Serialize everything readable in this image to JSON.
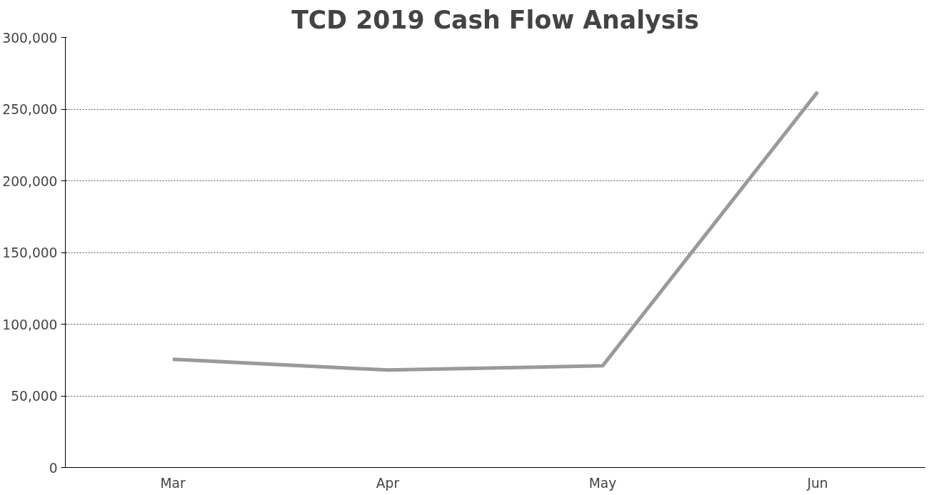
{
  "chart_data": {
    "type": "line",
    "title": "TCD 2019 Cash Flow Analysis",
    "categories": [
      "Mar",
      "Apr",
      "May",
      "Jun"
    ],
    "series": [
      {
        "color": "#9a9a9a",
        "values": [
          75500,
          68000,
          71000,
          262000
        ]
      }
    ],
    "ylim": [
      0,
      300000
    ],
    "yticks": [
      {
        "value": 0,
        "label": "0"
      },
      {
        "value": 50000,
        "label": "50,000"
      },
      {
        "value": 100000,
        "label": "100,000"
      },
      {
        "value": 150000,
        "label": "150,000"
      },
      {
        "value": 200000,
        "label": "200,000"
      },
      {
        "value": 250000,
        "label": "250,000"
      },
      {
        "value": 300000,
        "label": "300,000"
      }
    ],
    "grid": "y",
    "marker": "none",
    "line_style": "solid"
  }
}
